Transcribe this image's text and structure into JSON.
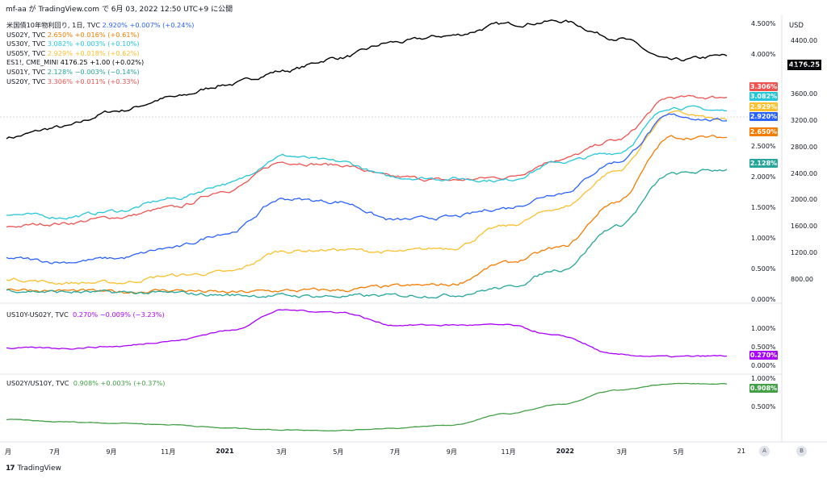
{
  "header": {
    "text": "mf-aa が TradingView.com で 6月 03, 2022 12:50 UTC+9 に公開"
  },
  "footer": {
    "logo": "17",
    "brand": "TradingView"
  },
  "axis": {
    "currency": "USD"
  },
  "legend": [
    {
      "name": "米国債10年物利回り, 1日, TVC",
      "value": "2.920%  +0.007% (+0.24%)",
      "color": "#2962ff"
    },
    {
      "name": "US02Y, TVC",
      "value": "2.650%  +0.016% (+0.61%)",
      "color": "#f57c00"
    },
    {
      "name": "US30Y, TVC",
      "value": "3.082%  +0.003% (+0.10%)",
      "color": "#26c6da"
    },
    {
      "name": "US05Y, TVC",
      "value": "2.929%  +0.018% (+0.62%)",
      "color": "#fbc02d"
    },
    {
      "name": "ES1!, CME_MINI",
      "value": "4176.25  +1.00 (+0.02%)",
      "color": "#000000"
    },
    {
      "name": "US01Y, TVC",
      "value": "2.128%  −0.003% (−0.14%)",
      "color": "#26a69a"
    },
    {
      "name": "US20Y, TVC",
      "value": "3.306%  +0.011% (+0.33%)",
      "color": "#ef5350"
    }
  ],
  "pane2_legend": {
    "name": "US10Y-US02Y, TVC",
    "value": "0.270%  −0.009% (−3.23%)",
    "color": "#aa00ff"
  },
  "pane3_legend": {
    "name": "US02Y/US10Y, TVC",
    "value": "0.908%  +0.003% (+0.37%)",
    "color": "#43a047"
  },
  "tags": [
    {
      "text": "3.306%",
      "color": "#ef5350"
    },
    {
      "text": "3.082%",
      "color": "#26c6da"
    },
    {
      "text": "2.929%",
      "color": "#fbc02d"
    },
    {
      "text": "2.920%",
      "color": "#2962ff"
    },
    {
      "text": "2.650%",
      "color": "#f57c00"
    },
    {
      "text": "2.128%",
      "color": "#26a69a"
    },
    {
      "text": "0.270%",
      "color": "#aa00ff"
    },
    {
      "text": "0.908%",
      "color": "#43a047"
    }
  ],
  "es_tag": "4176.25",
  "buttons": {
    "a": "A",
    "b": "B"
  },
  "chart_data": [
    {
      "type": "line",
      "title": "米国債10年物利回り, 1日, TVC",
      "x_ticks": [
        "月",
        "7月",
        "9月",
        "11月",
        "2021",
        "3月",
        "5月",
        "7月",
        "9月",
        "11月",
        "2022",
        "3月",
        "5月",
        "21"
      ],
      "yield_axis_ticks": [
        "4.500%",
        "4.000%",
        "3.500%",
        "3.000%",
        "2.500%",
        "2.000%",
        "1.500%",
        "1.000%",
        "0.500%",
        "0.000%"
      ],
      "yield_range": [
        0,
        4.6
      ],
      "price_axis_ticks": [
        "4400.00",
        "4000.00",
        "3600.00",
        "3200.00",
        "2800.00",
        "2400.00",
        "2000.00",
        "1600.00",
        "1200.00",
        "800.00"
      ],
      "price_range": [
        500,
        4750
      ],
      "x_points": [
        "2020-05",
        "2020-07",
        "2020-09",
        "2020-11",
        "2021-01",
        "2021-03",
        "2021-05",
        "2021-07",
        "2021-09",
        "2021-11",
        "2022-01",
        "2022-03",
        "2022-05",
        "2022-06"
      ],
      "series": [
        {
          "name": "ES1!, CME_MINI",
          "color": "#000000",
          "axis": "price",
          "values": [
            2950,
            3100,
            3350,
            3550,
            3750,
            3950,
            4150,
            4380,
            4480,
            4650,
            4700,
            4450,
            4100,
            4176
          ]
        },
        {
          "name": "US20Y, TVC",
          "color": "#ef5350",
          "axis": "yield",
          "values": [
            1.2,
            1.25,
            1.35,
            1.5,
            1.8,
            2.25,
            2.2,
            2.0,
            1.95,
            2.0,
            2.3,
            2.6,
            3.3,
            3.306
          ]
        },
        {
          "name": "US30Y, TVC",
          "color": "#26c6da",
          "axis": "yield",
          "values": [
            1.4,
            1.35,
            1.45,
            1.65,
            1.9,
            2.35,
            2.25,
            2.0,
            1.98,
            1.95,
            2.25,
            2.4,
            3.15,
            3.082
          ]
        },
        {
          "name": "US05Y, TVC",
          "color": "#fbc02d",
          "axis": "yield",
          "values": [
            0.35,
            0.28,
            0.28,
            0.4,
            0.45,
            0.8,
            0.82,
            0.78,
            0.85,
            1.2,
            1.5,
            2.1,
            3.05,
            2.929
          ]
        },
        {
          "name": "米国債10年物利回り, 1日, TVC",
          "color": "#2962ff",
          "axis": "yield",
          "values": [
            0.68,
            0.62,
            0.68,
            0.85,
            1.1,
            1.65,
            1.6,
            1.3,
            1.35,
            1.5,
            1.75,
            2.25,
            3.0,
            2.92
          ]
        },
        {
          "name": "US02Y, TVC",
          "color": "#f57c00",
          "axis": "yield",
          "values": [
            0.18,
            0.15,
            0.13,
            0.16,
            0.12,
            0.15,
            0.16,
            0.22,
            0.25,
            0.6,
            0.85,
            1.6,
            2.65,
            2.65
          ]
        },
        {
          "name": "US01Y, TVC",
          "color": "#26a69a",
          "axis": "yield",
          "values": [
            0.16,
            0.13,
            0.12,
            0.11,
            0.08,
            0.07,
            0.06,
            0.07,
            0.08,
            0.2,
            0.5,
            1.2,
            2.05,
            2.128
          ]
        }
      ]
    },
    {
      "type": "line",
      "title": "US10Y-US02Y, TVC",
      "y_ticks": [
        "1.000%",
        "0.500%",
        "0.000%"
      ],
      "ylim": [
        0,
        1.6
      ],
      "x_points": [
        "2020-05",
        "2020-07",
        "2020-09",
        "2020-11",
        "2021-01",
        "2021-03",
        "2021-05",
        "2021-07",
        "2021-09",
        "2021-11",
        "2022-01",
        "2022-03",
        "2022-05",
        "2022-06"
      ],
      "series": [
        {
          "name": "US10Y-US02Y, TVC",
          "color": "#aa00ff",
          "values": [
            0.48,
            0.48,
            0.53,
            0.68,
            0.95,
            1.5,
            1.45,
            1.1,
            1.1,
            1.1,
            0.8,
            0.3,
            0.25,
            0.27
          ]
        }
      ]
    },
    {
      "type": "line",
      "title": "US02Y/US10Y, TVC",
      "y_ticks": [
        "1.000%",
        "0.500%"
      ],
      "ylim": [
        0,
        1.0
      ],
      "x_points": [
        "2020-05",
        "2020-07",
        "2020-09",
        "2020-11",
        "2021-01",
        "2021-03",
        "2021-05",
        "2021-07",
        "2021-09",
        "2021-11",
        "2022-01",
        "2022-03",
        "2022-05",
        "2022-06"
      ],
      "series": [
        {
          "name": "US02Y/US10Y, TVC",
          "color": "#43a047",
          "values": [
            0.28,
            0.24,
            0.22,
            0.19,
            0.13,
            0.1,
            0.09,
            0.13,
            0.18,
            0.38,
            0.55,
            0.8,
            0.92,
            0.908
          ]
        }
      ]
    }
  ]
}
